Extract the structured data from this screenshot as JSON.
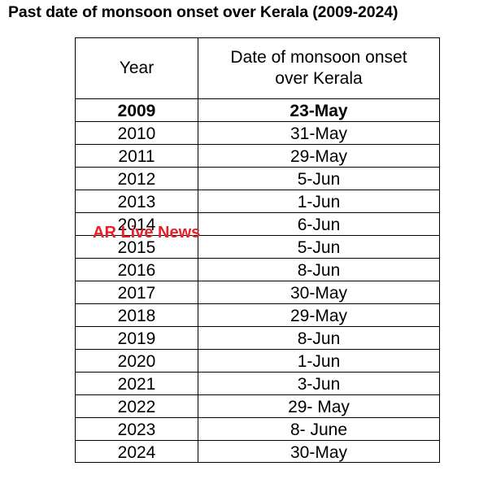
{
  "title": "Past date of monsoon onset over Kerala (2009-2024)",
  "table": {
    "headers": {
      "year": "Year",
      "date_line1": "Date of monsoon onset",
      "date_line2": "over Kerala"
    },
    "rows": [
      {
        "year": "2009",
        "date": "23-May"
      },
      {
        "year": "2010",
        "date": "31-May"
      },
      {
        "year": "2011",
        "date": "29-May"
      },
      {
        "year": "2012",
        "date": "5-Jun"
      },
      {
        "year": "2013",
        "date": "1-Jun"
      },
      {
        "year": "2014",
        "date": "6-Jun"
      },
      {
        "year": "2015",
        "date": "5-Jun"
      },
      {
        "year": "2016",
        "date": "8-Jun"
      },
      {
        "year": "2017",
        "date": "30-May"
      },
      {
        "year": "2018",
        "date": "29-May"
      },
      {
        "year": "2019",
        "date": "8-Jun"
      },
      {
        "year": "2020",
        "date": "1-Jun"
      },
      {
        "year": "2021",
        "date": "3-Jun"
      },
      {
        "year": "2022",
        "date": "29- May"
      },
      {
        "year": "2023",
        "date": "8- June"
      },
      {
        "year": "2024",
        "date": "30-May"
      }
    ]
  },
  "watermark": {
    "text": "AR Live News",
    "color": "#e8202a"
  }
}
